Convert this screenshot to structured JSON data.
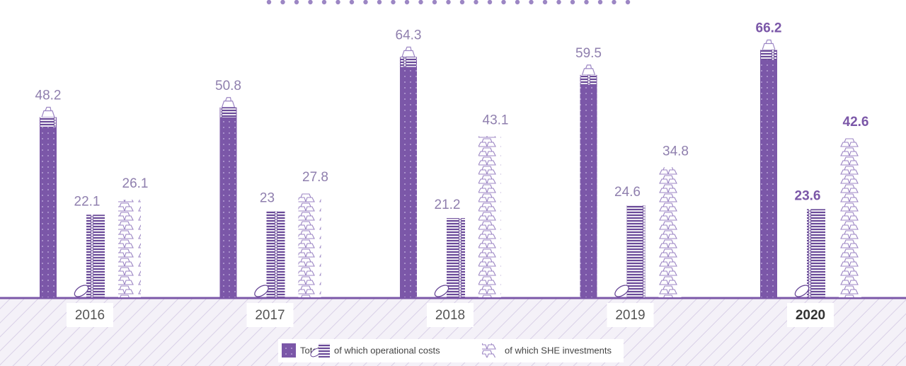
{
  "chart_data": {
    "type": "bar",
    "categories": [
      "2016",
      "2017",
      "2018",
      "2019",
      "2020"
    ],
    "series": [
      {
        "name": "Total",
        "color": "#7b57a8",
        "values": [
          48.2,
          50.8,
          64.3,
          59.5,
          66.2
        ]
      },
      {
        "name": "of which operational costs",
        "color": "#6a4a98",
        "values": [
          22.1,
          23,
          21.2,
          24.6,
          23.6
        ]
      },
      {
        "name": "of which SHE investments",
        "color": "#9c86c4",
        "values": [
          26.1,
          27.8,
          43.1,
          34.8,
          42.6
        ]
      }
    ],
    "ylim": [
      0,
      80
    ]
  }
}
